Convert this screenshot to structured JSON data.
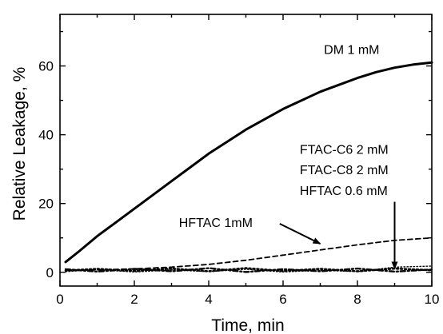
{
  "chart_data": {
    "type": "line",
    "xlabel": "Time, min",
    "ylabel": "Relative Leakage, %",
    "xlim": [
      0,
      10
    ],
    "ylim": [
      -4,
      75
    ],
    "x_ticks": [
      0,
      2,
      4,
      6,
      8,
      10
    ],
    "y_ticks": [
      0,
      20,
      40,
      60
    ],
    "grid": false,
    "series": [
      {
        "name": "DM 1 mM",
        "style": "solid-thick",
        "x": [
          0.15,
          0.5,
          1,
          1.5,
          2,
          2.5,
          3,
          3.5,
          4,
          4.5,
          5,
          5.5,
          6,
          6.5,
          7,
          7.5,
          8,
          8.5,
          9,
          9.5,
          10
        ],
        "y": [
          3,
          6,
          10.5,
          14.5,
          18.5,
          22.5,
          26.5,
          30.5,
          34.5,
          38,
          41.5,
          44.5,
          47.5,
          50,
          52.5,
          54.5,
          56.5,
          58.2,
          59.5,
          60.4,
          61
        ]
      },
      {
        "name": "HFTAC 1mM",
        "style": "dashed",
        "x": [
          0.15,
          1,
          2,
          3,
          4,
          5,
          6,
          7,
          8,
          9,
          10
        ],
        "y": [
          0.5,
          0.7,
          1,
          1.5,
          2.3,
          3.5,
          5,
          6.5,
          8,
          9.3,
          10
        ]
      },
      {
        "name": "FTAC-C6 2 mM",
        "style": "dotted",
        "x": [
          0.15,
          1,
          2,
          3,
          4,
          5,
          6,
          7,
          8,
          9,
          10
        ],
        "y": [
          0.5,
          1,
          0.4,
          1.1,
          0.3,
          1.2,
          0.4,
          1,
          0.3,
          1.1,
          0.6
        ]
      },
      {
        "name": "FTAC-C8 2 mM",
        "style": "dash-dot",
        "x": [
          0.15,
          1,
          2,
          3,
          4,
          5,
          6,
          7,
          8,
          9,
          10
        ],
        "y": [
          0.9,
          0.2,
          1,
          0.3,
          1.2,
          0.1,
          0.9,
          0.3,
          1.1,
          0.2,
          0.8
        ]
      },
      {
        "name": "HFTAC 0.6 mM",
        "style": "dotted-thin",
        "x": [
          0.15,
          1,
          2,
          3,
          4,
          5,
          6,
          7,
          8,
          9,
          10
        ],
        "y": [
          0.2,
          0.8,
          0.1,
          0.7,
          0.2,
          0.9,
          0.1,
          0.6,
          0.2,
          1.5,
          1.8
        ]
      }
    ],
    "annotations": [
      {
        "text": "DM 1 mM",
        "x": 7.1,
        "y": 63.5
      },
      {
        "text": "FTAC-C6 2 mM",
        "x": 6.45,
        "y": 34.5
      },
      {
        "text": "FTAC-C8 2 mM",
        "x": 6.45,
        "y": 28.5
      },
      {
        "text": "HFTAC 0.6 mM",
        "x": 6.45,
        "y": 22.5
      },
      {
        "text": "HFTAC 1mM",
        "x": 3.2,
        "y": 13.2,
        "arrow_to": [
          7,
          8.3
        ]
      }
    ],
    "arrows": [
      {
        "from": [
          9,
          20.5
        ],
        "to": [
          9,
          1
        ]
      }
    ]
  }
}
